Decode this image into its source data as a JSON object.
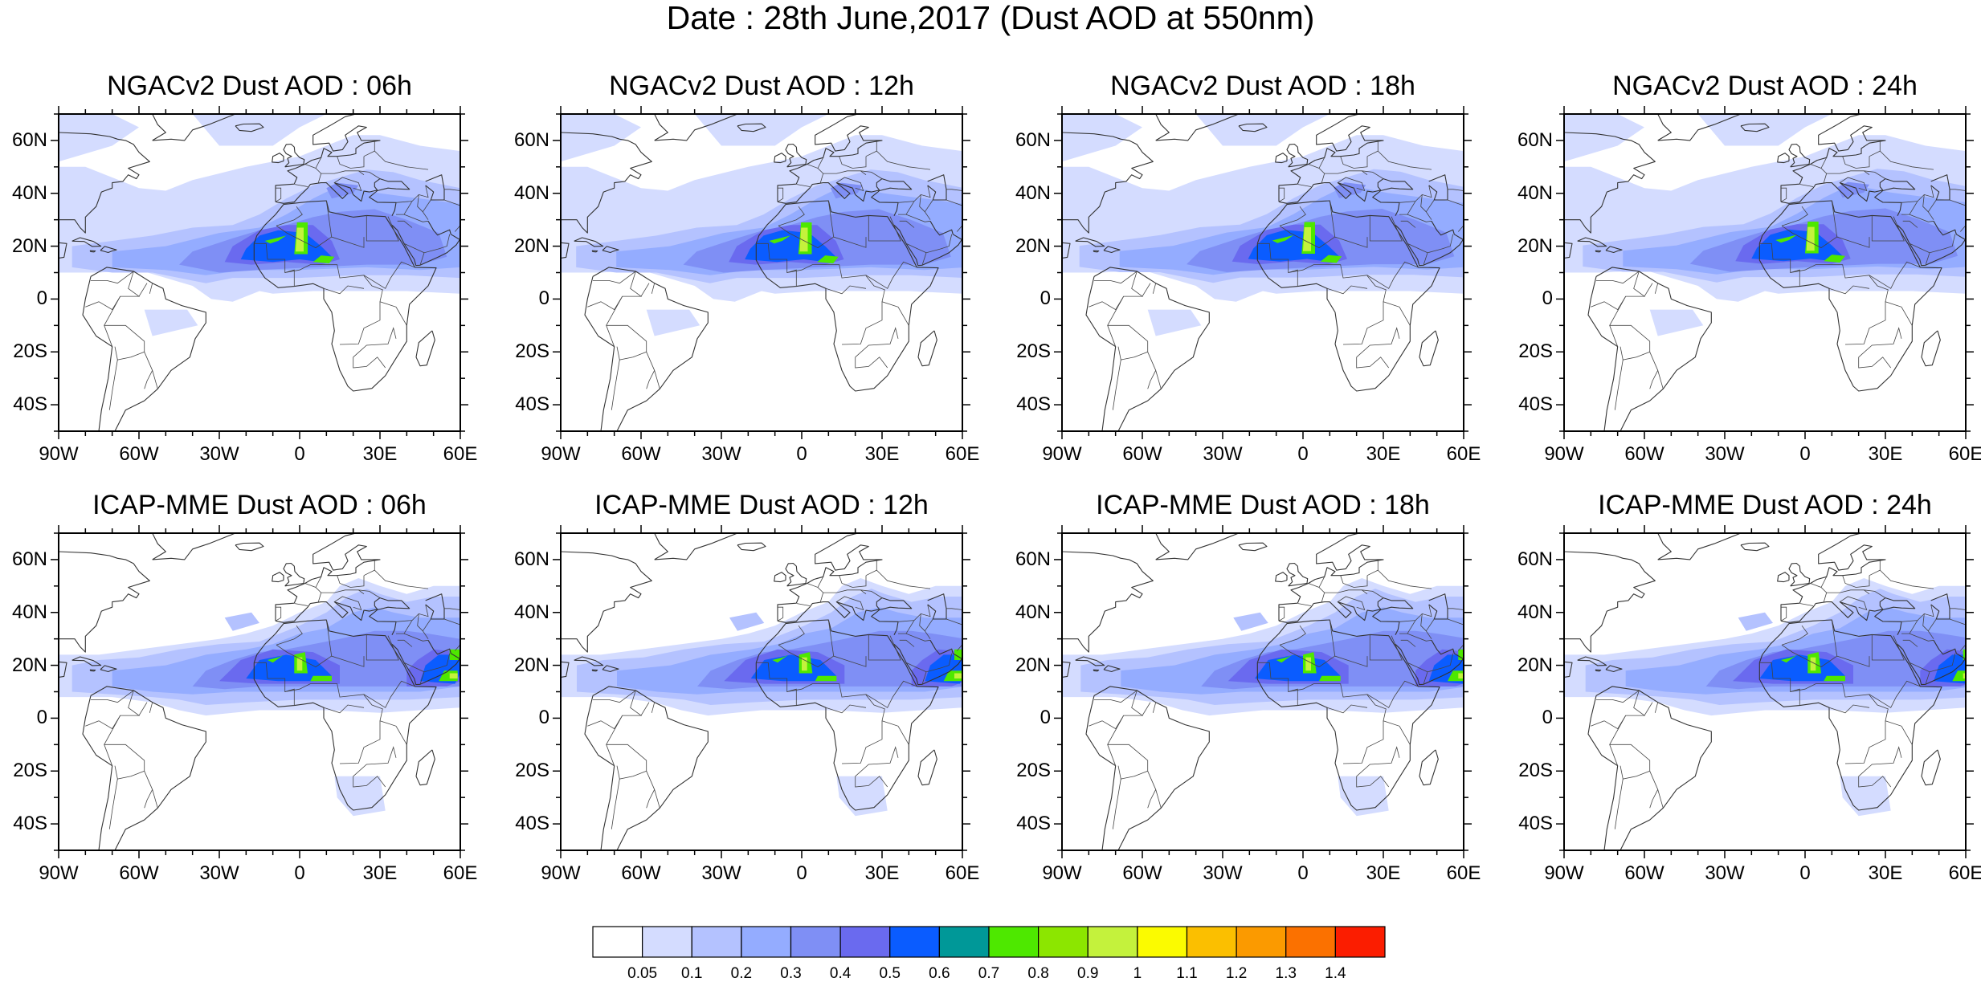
{
  "title": "Date : 28th June,2017 (Dust AOD at 550nm)",
  "panels": [
    {
      "id": "ngac-06",
      "title": "NGACv2 Dust AOD : 06h",
      "model": "NGACv2",
      "hour": "06h"
    },
    {
      "id": "ngac-12",
      "title": "NGACv2 Dust AOD : 12h",
      "model": "NGACv2",
      "hour": "12h"
    },
    {
      "id": "ngac-18",
      "title": "NGACv2 Dust AOD : 18h",
      "model": "NGACv2",
      "hour": "18h"
    },
    {
      "id": "ngac-24",
      "title": "NGACv2 Dust AOD : 24h",
      "model": "NGACv2",
      "hour": "24h"
    },
    {
      "id": "icap-06",
      "title": "ICAP-MME Dust AOD : 06h",
      "model": "ICAP-MME",
      "hour": "06h"
    },
    {
      "id": "icap-12",
      "title": "ICAP-MME Dust AOD : 12h",
      "model": "ICAP-MME",
      "hour": "12h"
    },
    {
      "id": "icap-18",
      "title": "ICAP-MME Dust AOD : 18h",
      "model": "ICAP-MME",
      "hour": "18h"
    },
    {
      "id": "icap-24",
      "title": "ICAP-MME Dust AOD : 24h",
      "model": "ICAP-MME",
      "hour": "24h"
    }
  ],
  "map_extent": {
    "lon": [
      -90,
      60
    ],
    "lat": [
      -50,
      70
    ]
  },
  "lat_ticks": [
    {
      "value": 60,
      "label": "60N"
    },
    {
      "value": 40,
      "label": "40N"
    },
    {
      "value": 20,
      "label": "20N"
    },
    {
      "value": 0,
      "label": "0"
    },
    {
      "value": -20,
      "label": "20S"
    },
    {
      "value": -40,
      "label": "40S"
    }
  ],
  "lon_ticks": [
    {
      "value": -90,
      "label": "90W"
    },
    {
      "value": -60,
      "label": "60W"
    },
    {
      "value": -30,
      "label": "30W"
    },
    {
      "value": 0,
      "label": "0"
    },
    {
      "value": 30,
      "label": "30E"
    },
    {
      "value": 60,
      "label": "60E"
    }
  ],
  "colorbar": {
    "colors": [
      "#ffffff",
      "#d4dcff",
      "#b4c2ff",
      "#94acff",
      "#7f8ff5",
      "#6a6aef",
      "#0a5cff",
      "#009898",
      "#4ee800",
      "#8ce600",
      "#c4f23c",
      "#fbfb00",
      "#fbbf00",
      "#fb9a00",
      "#fb7100",
      "#fb1d00"
    ],
    "labels": [
      "0.05",
      "0.1",
      "0.2",
      "0.3",
      "0.4",
      "0.5",
      "0.6",
      "0.7",
      "0.8",
      "0.9",
      "1",
      "1.1",
      "1.2",
      "1.3",
      "1.4"
    ]
  }
}
